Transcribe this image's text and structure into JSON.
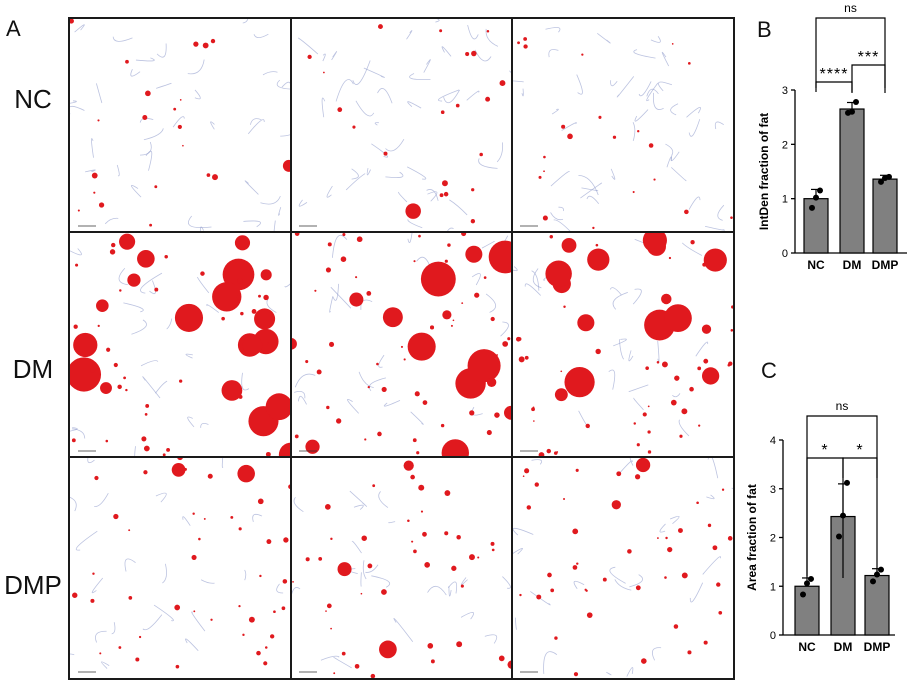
{
  "panel_a": {
    "letter": "A",
    "rows": [
      "NC",
      "DM",
      "DMP"
    ]
  },
  "panel_b": {
    "letter": "B"
  },
  "panel_c": {
    "letter": "C"
  },
  "colors": {
    "bar": "#808080",
    "stain": "#e0191e",
    "tissue": "#8f9bcc",
    "axis": "#000000"
  },
  "chart_data": [
    {
      "type": "bar",
      "title": "",
      "categories": [
        "NC",
        "DM",
        "DMP"
      ],
      "values": [
        1.0,
        2.65,
        1.36
      ],
      "errors": [
        0.17,
        0.12,
        0.07
      ],
      "points": [
        [
          0.83,
          1.02,
          1.15
        ],
        [
          2.58,
          2.6,
          2.78
        ],
        [
          1.31,
          1.38,
          1.4
        ]
      ],
      "xlabel": "",
      "ylabel": "IntDen fraction of fat",
      "ylim": [
        0,
        3
      ],
      "yticks": [
        0,
        1,
        2,
        3
      ],
      "significance": [
        {
          "from": "DM",
          "to": "DMP",
          "label": "***"
        },
        {
          "from": "NC",
          "to": "DM",
          "label": "****"
        },
        {
          "from": "NC",
          "to": "DMP",
          "label": "ns"
        }
      ]
    },
    {
      "type": "bar",
      "title": "",
      "categories": [
        "NC",
        "DM",
        "DMP"
      ],
      "values": [
        1.0,
        2.43,
        1.22
      ],
      "errors": [
        0.17,
        0.67,
        0.14
      ],
      "points": [
        [
          0.83,
          1.06,
          1.15
        ],
        [
          2.02,
          2.45,
          3.12
        ],
        [
          1.1,
          1.24,
          1.34
        ]
      ],
      "xlabel": "",
      "ylabel": "Area fraction of fat",
      "ylim": [
        0,
        4
      ],
      "yticks": [
        0,
        1,
        2,
        3,
        4
      ],
      "significance": [
        {
          "from": "NC",
          "to": "DM",
          "label": "*"
        },
        {
          "from": "DM",
          "to": "DMP",
          "label": "*"
        },
        {
          "from": "NC",
          "to": "DMP",
          "label": "ns"
        }
      ]
    }
  ]
}
